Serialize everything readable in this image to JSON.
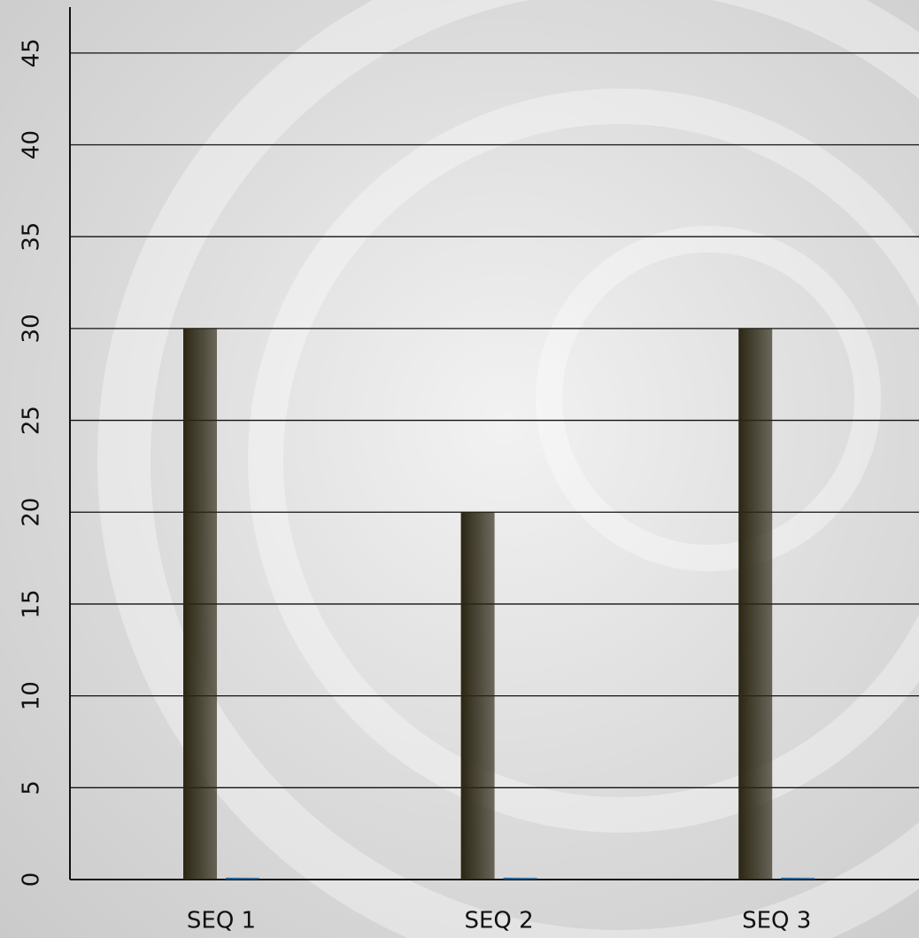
{
  "chart_data": {
    "type": "bar",
    "categories": [
      "SEQ 1",
      "SEQ 2",
      "SEQ 3"
    ],
    "series": [
      {
        "color": "#2b2613",
        "values": [
          30,
          20,
          30
        ]
      },
      {
        "color": "#1d5f96",
        "values": [
          0.1,
          0.1,
          0.1
        ]
      }
    ],
    "ylim": [
      0,
      47.5
    ],
    "yticks": [
      0,
      5,
      10,
      15,
      20,
      25,
      30,
      35,
      40,
      45
    ],
    "grid": true
  }
}
